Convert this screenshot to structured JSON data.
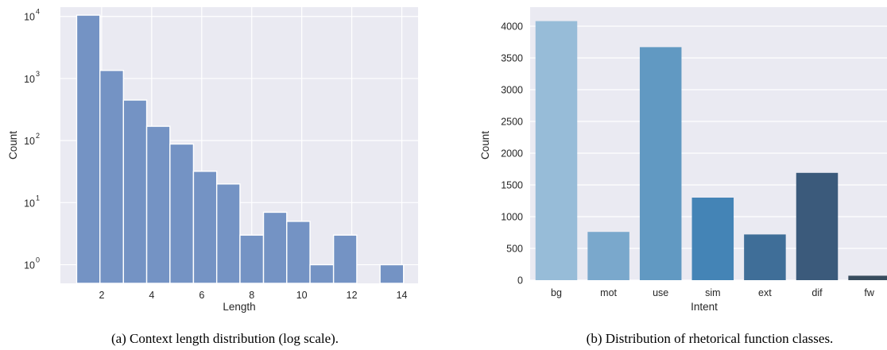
{
  "charts": {
    "left": {
      "caption": "(a) Context length distribution (log scale).",
      "chart_data": {
        "type": "bar",
        "subtype": "histogram",
        "xlabel": "Length",
        "ylabel": "Count",
        "xlim": [
          0.35,
          14.65
        ],
        "ylim_log10": [
          -0.3,
          4.15
        ],
        "y_scale": "log",
        "grid": true,
        "xticks": [
          2,
          4,
          6,
          8,
          10,
          12,
          14
        ],
        "xtick_labels": [
          "2",
          "4",
          "6",
          "8",
          "10",
          "12",
          "14"
        ],
        "yticks": [
          1,
          10,
          100,
          1000,
          10000
        ],
        "ytick_labels": [
          {
            "base": "10",
            "exp": "0"
          },
          {
            "base": "10",
            "exp": "1"
          },
          {
            "base": "10",
            "exp": "2"
          },
          {
            "base": "10",
            "exp": "3"
          },
          {
            "base": "10",
            "exp": "4"
          }
        ],
        "bins": [
          {
            "x0": 1.0,
            "x1": 1.93,
            "value": 10500
          },
          {
            "x0": 1.93,
            "x1": 2.87,
            "value": 1350
          },
          {
            "x0": 2.87,
            "x1": 3.8,
            "value": 450
          },
          {
            "x0": 3.8,
            "x1": 4.73,
            "value": 170
          },
          {
            "x0": 4.73,
            "x1": 5.67,
            "value": 88
          },
          {
            "x0": 5.67,
            "x1": 6.6,
            "value": 32
          },
          {
            "x0": 6.6,
            "x1": 7.53,
            "value": 20
          },
          {
            "x0": 7.53,
            "x1": 8.47,
            "value": 3
          },
          {
            "x0": 8.47,
            "x1": 9.4,
            "value": 7
          },
          {
            "x0": 9.4,
            "x1": 10.33,
            "value": 5
          },
          {
            "x0": 10.33,
            "x1": 11.27,
            "value": 1
          },
          {
            "x0": 11.27,
            "x1": 12.2,
            "value": 3
          },
          {
            "x0": 12.2,
            "x1": 13.13,
            "value": 0
          },
          {
            "x0": 13.13,
            "x1": 14.07,
            "value": 1
          }
        ],
        "colors": {
          "bar": "#7493c4",
          "background": "#eaeaf2",
          "grid": "#ffffff"
        }
      }
    },
    "right": {
      "caption": "(b) Distribution of rhetorical function classes.",
      "chart_data": {
        "type": "bar",
        "xlabel": "Intent",
        "ylabel": "Count",
        "ylim": [
          0,
          4300
        ],
        "grid": true,
        "categories": [
          "bg",
          "mot",
          "use",
          "sim",
          "ext",
          "dif",
          "fw"
        ],
        "values": [
          4080,
          760,
          3670,
          1300,
          720,
          1690,
          70
        ],
        "yticks": [
          0,
          500,
          1000,
          1500,
          2000,
          2500,
          3000,
          3500,
          4000
        ],
        "ytick_labels": [
          "0",
          "500",
          "1000",
          "1500",
          "2000",
          "2500",
          "3000",
          "3500",
          "4000"
        ],
        "bar_colors": [
          "#97bcd8",
          "#7aa8cc",
          "#6199c2",
          "#4484b6",
          "#3f6e98",
          "#3b5a7b",
          "#384c5e"
        ],
        "colors": {
          "background": "#eaeaf2",
          "grid": "#ffffff"
        }
      }
    }
  }
}
